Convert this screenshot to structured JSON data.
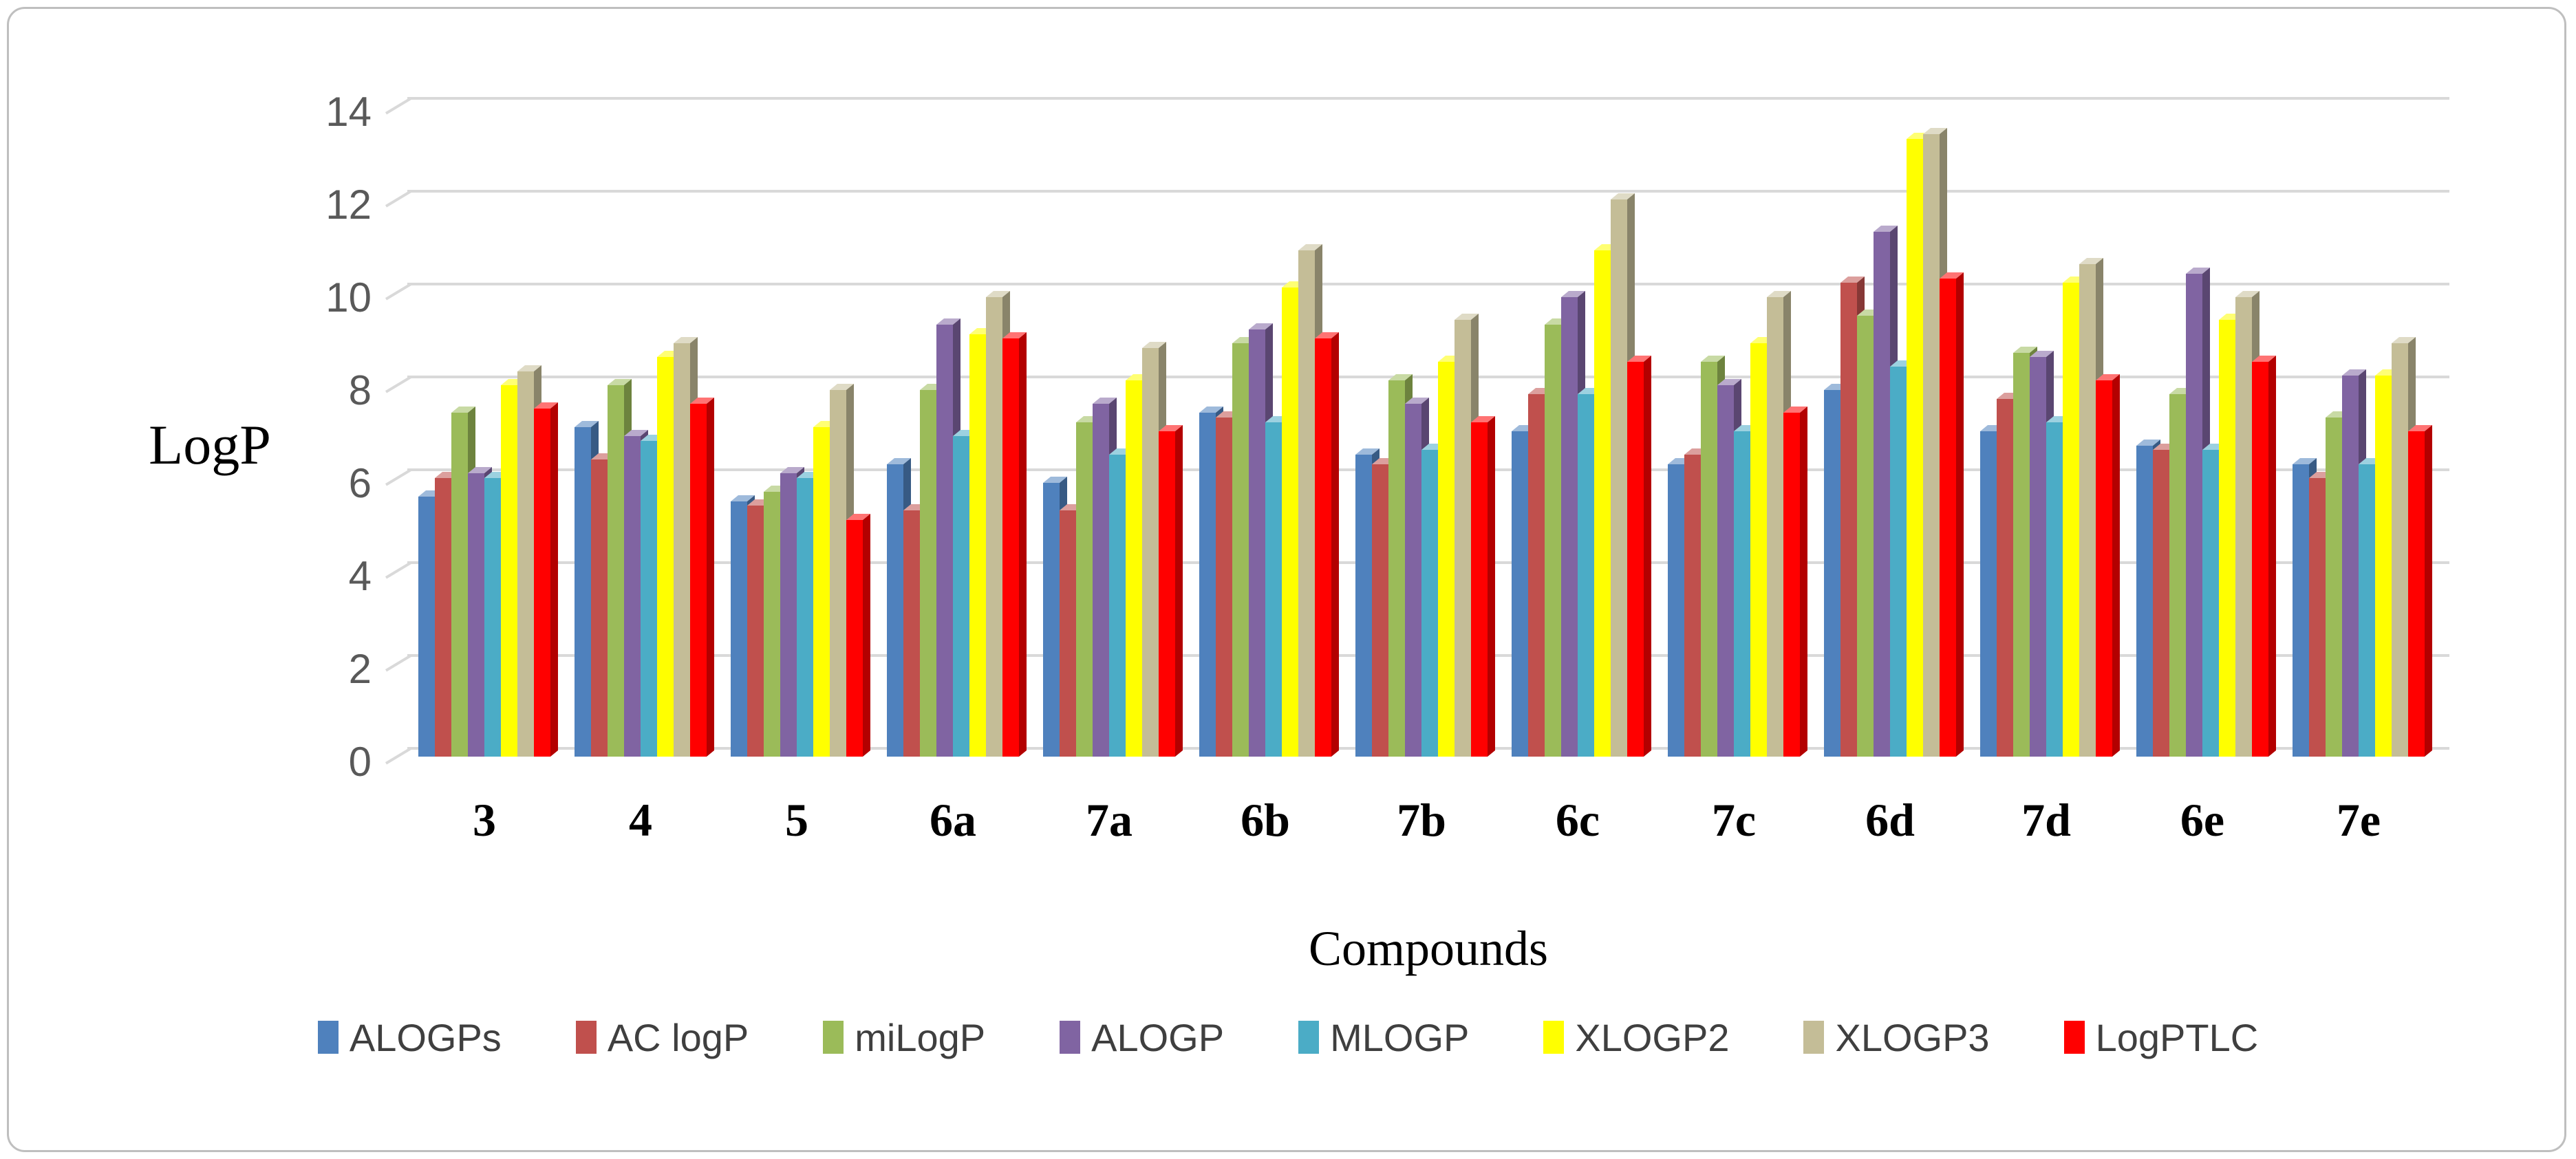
{
  "figure": {
    "background": "#FFFFFF",
    "border_color": "#BFBFBF",
    "gridline_color": "#D9D9D9",
    "tick_label_color": "#595959",
    "legend_text_color": "#3F3F3F"
  },
  "chart_data": {
    "type": "bar",
    "style": "3d-clustered-column",
    "title": "",
    "ylabel": "LogP",
    "xlabel": "Compounds",
    "ylim": [
      0,
      14
    ],
    "yticks": [
      0,
      2,
      4,
      6,
      8,
      10,
      12,
      14
    ],
    "grid": true,
    "legend_position": "bottom",
    "categories": [
      "3",
      "4",
      "5",
      "6a",
      "7a",
      "6b",
      "7b",
      "6c",
      "7c",
      "6d",
      "7d",
      "6e",
      "7e"
    ],
    "series": [
      {
        "name": "ALOGPs",
        "color": "#4F81BD",
        "values": [
          5.6,
          7.1,
          5.5,
          6.3,
          5.9,
          7.4,
          6.5,
          7.0,
          6.3,
          7.9,
          7.0,
          6.7,
          6.3
        ]
      },
      {
        "name": "AC logP",
        "color": "#C0504D",
        "values": [
          6.0,
          6.4,
          5.4,
          5.3,
          5.3,
          7.3,
          6.3,
          7.8,
          6.5,
          10.2,
          7.7,
          6.6,
          6.0
        ]
      },
      {
        "name": "miLogP",
        "color": "#9BBB59",
        "values": [
          7.4,
          8.0,
          5.7,
          7.9,
          7.2,
          8.9,
          8.1,
          9.3,
          8.5,
          9.5,
          8.7,
          7.8,
          7.3
        ]
      },
      {
        "name": "ALOGP",
        "color": "#8064A2",
        "values": [
          6.1,
          6.9,
          6.1,
          9.3,
          7.6,
          9.2,
          7.6,
          9.9,
          8.0,
          11.3,
          8.6,
          10.4,
          8.2
        ]
      },
      {
        "name": "MLOGP",
        "color": "#4BACC6",
        "values": [
          6.0,
          6.8,
          6.0,
          6.9,
          6.5,
          7.2,
          6.6,
          7.8,
          7.0,
          8.4,
          7.2,
          6.6,
          6.3
        ]
      },
      {
        "name": "XLOGP2",
        "color": "#FFFF00",
        "values": [
          8.0,
          8.6,
          7.1,
          9.1,
          8.1,
          10.1,
          8.5,
          10.9,
          8.9,
          13.3,
          10.2,
          9.4,
          8.2
        ]
      },
      {
        "name": "XLOGP3",
        "color": "#C4BD97",
        "values": [
          8.3,
          8.9,
          7.9,
          9.9,
          8.8,
          10.9,
          9.4,
          12.0,
          9.9,
          13.4,
          10.6,
          9.9,
          8.9
        ]
      },
      {
        "name": "LogPTLC",
        "color": "#FF0000",
        "values": [
          7.5,
          7.6,
          5.1,
          9.0,
          7.0,
          9.0,
          7.2,
          8.5,
          7.4,
          10.3,
          8.1,
          8.5,
          7.0
        ]
      }
    ]
  }
}
